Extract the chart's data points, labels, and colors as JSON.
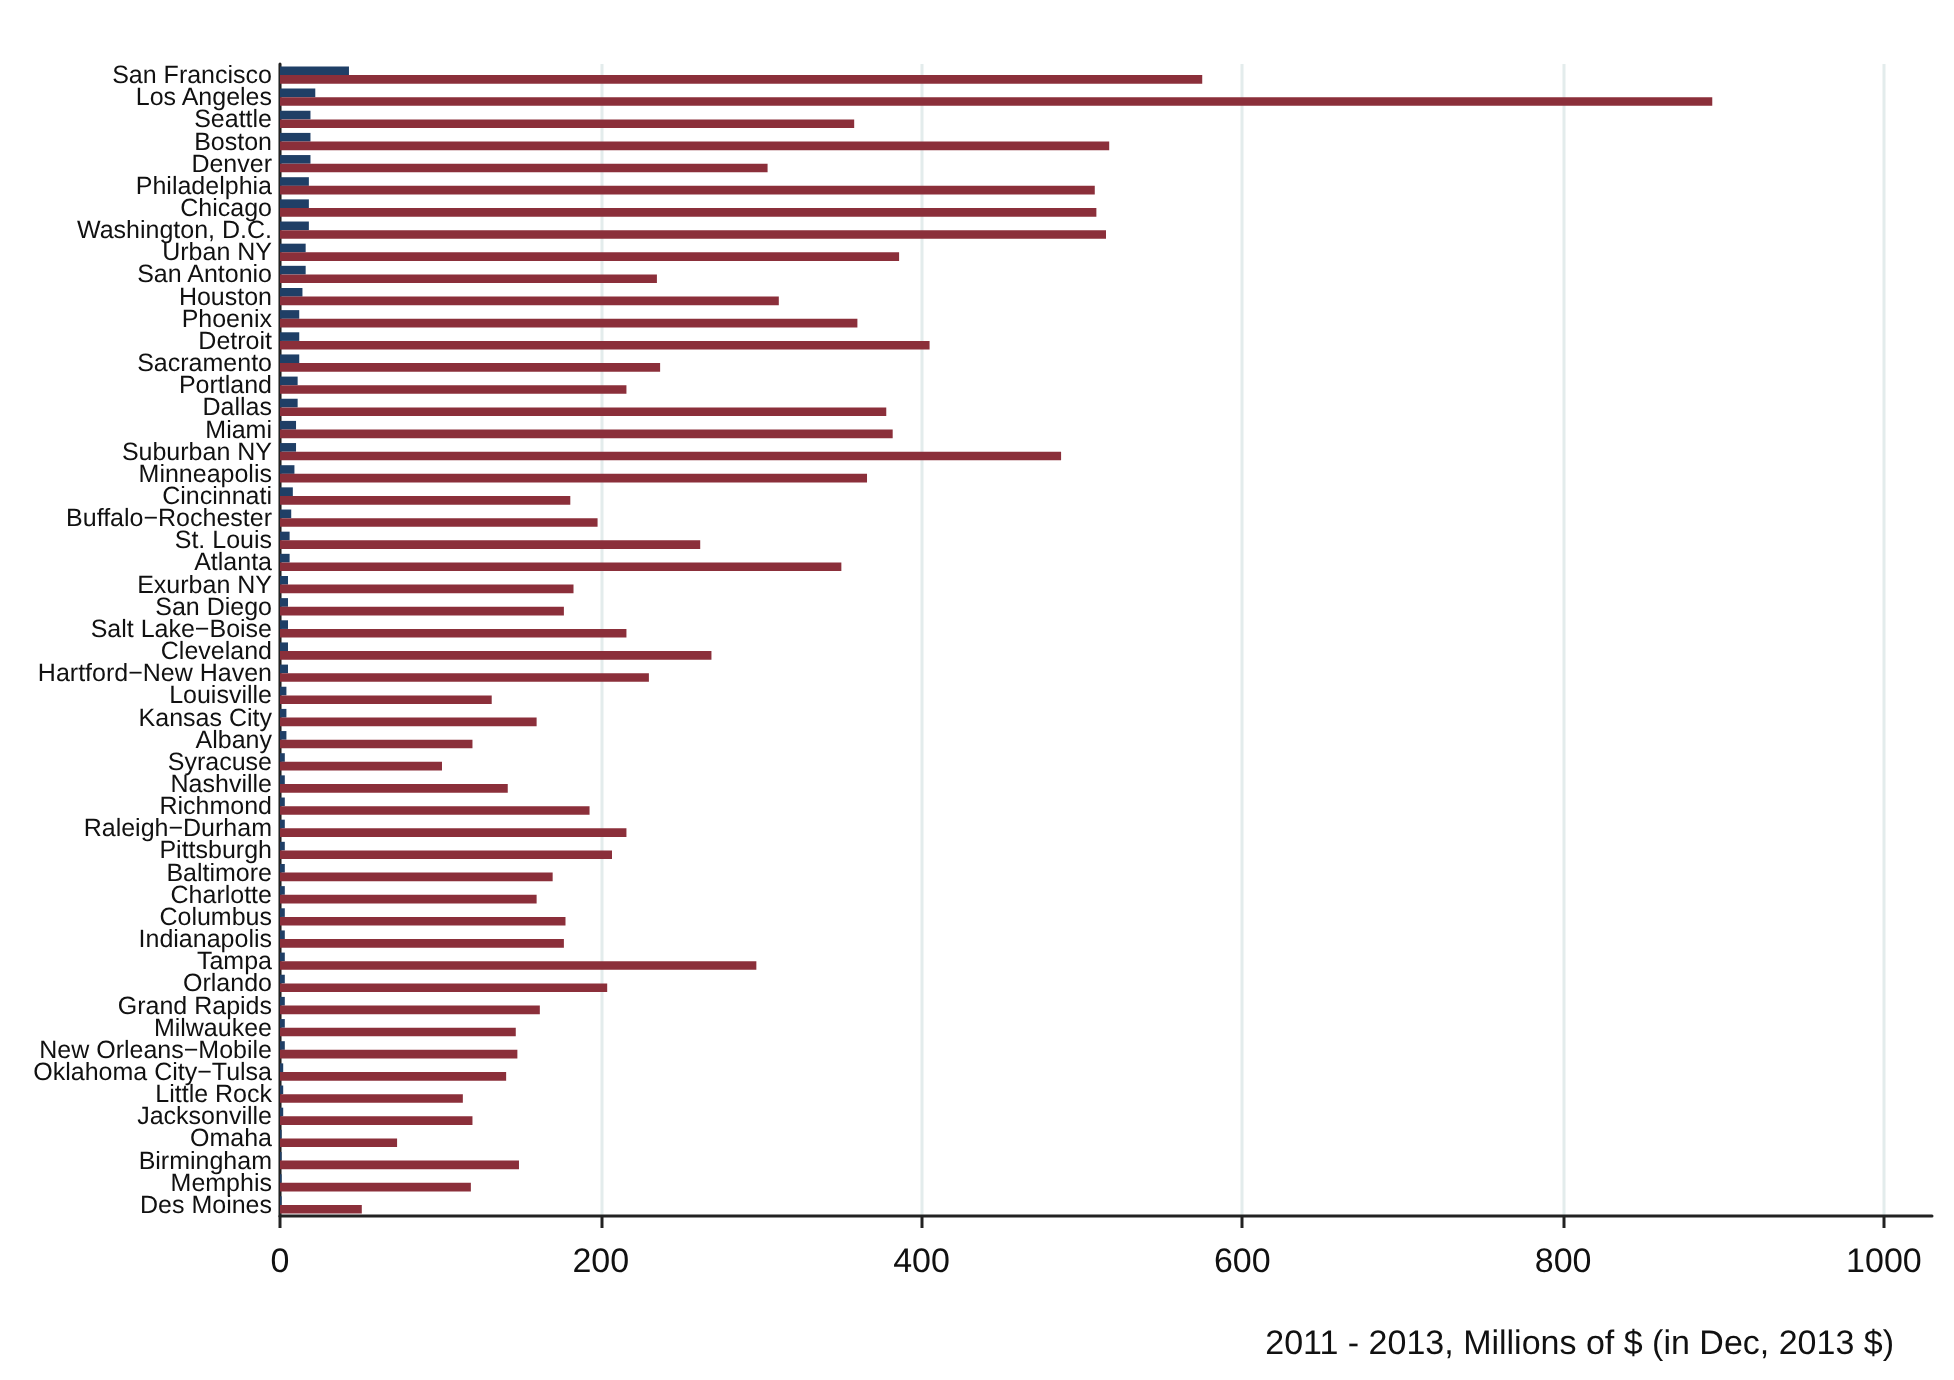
{
  "chart_data": {
    "type": "bar",
    "orientation": "horizontal",
    "xlabel": "2011 - 2013, Millions of $ (in Dec, 2013 $)",
    "categories": [
      "San Francisco",
      "Los Angeles",
      "Seattle",
      "Boston",
      "Denver",
      "Philadelphia",
      "Chicago",
      "Washington, D.C.",
      "Urban NY",
      "San Antonio",
      "Houston",
      "Phoenix",
      "Detroit",
      "Sacramento",
      "Portland",
      "Dallas",
      "Miami",
      "Suburban NY",
      "Minneapolis",
      "Cincinnati",
      "Buffalo−Rochester",
      "St. Louis",
      "Atlanta",
      "Exurban NY",
      "San Diego",
      "Salt Lake−Boise",
      "Cleveland",
      "Hartford−New Haven",
      "Louisville",
      "Kansas City",
      "Albany",
      "Syracuse",
      "Nashville",
      "Richmond",
      "Raleigh−Durham",
      "Pittsburgh",
      "Baltimore",
      "Charlotte",
      "Columbus",
      "Indianapolis",
      "Tampa",
      "Orlando",
      "Grand Rapids",
      "Milwaukee",
      "New Orleans−Mobile",
      "Oklahoma City−Tulsa",
      "Little Rock",
      "Jacksonville",
      "Omaha",
      "Birmingham",
      "Memphis",
      "Des Moines"
    ],
    "series": [
      {
        "color": "#1f3f66",
        "values": [
          43,
          22,
          19,
          19,
          19,
          18,
          18,
          18,
          16,
          16,
          14,
          12,
          12,
          12,
          11,
          11,
          10,
          10,
          9,
          8,
          7,
          6,
          6,
          5,
          5,
          5,
          5,
          5,
          4,
          4,
          4,
          3,
          3,
          3,
          3,
          3,
          3,
          3,
          3,
          3,
          3,
          3,
          3,
          3,
          3,
          2,
          2,
          2,
          1,
          1,
          1,
          1
        ]
      },
      {
        "color": "#8b2f3a",
        "values": [
          575,
          893,
          358,
          517,
          304,
          508,
          509,
          515,
          386,
          235,
          311,
          360,
          405,
          237,
          216,
          378,
          382,
          487,
          366,
          181,
          198,
          262,
          350,
          183,
          177,
          216,
          269,
          230,
          132,
          160,
          120,
          101,
          142,
          193,
          216,
          207,
          170,
          160,
          178,
          177,
          297,
          204,
          162,
          147,
          148,
          141,
          114,
          120,
          73,
          149,
          119,
          51
        ]
      }
    ],
    "xlim": [
      0,
      1030
    ],
    "xticks": [
      0,
      200,
      400,
      600,
      800,
      1000
    ],
    "grid": "x"
  }
}
